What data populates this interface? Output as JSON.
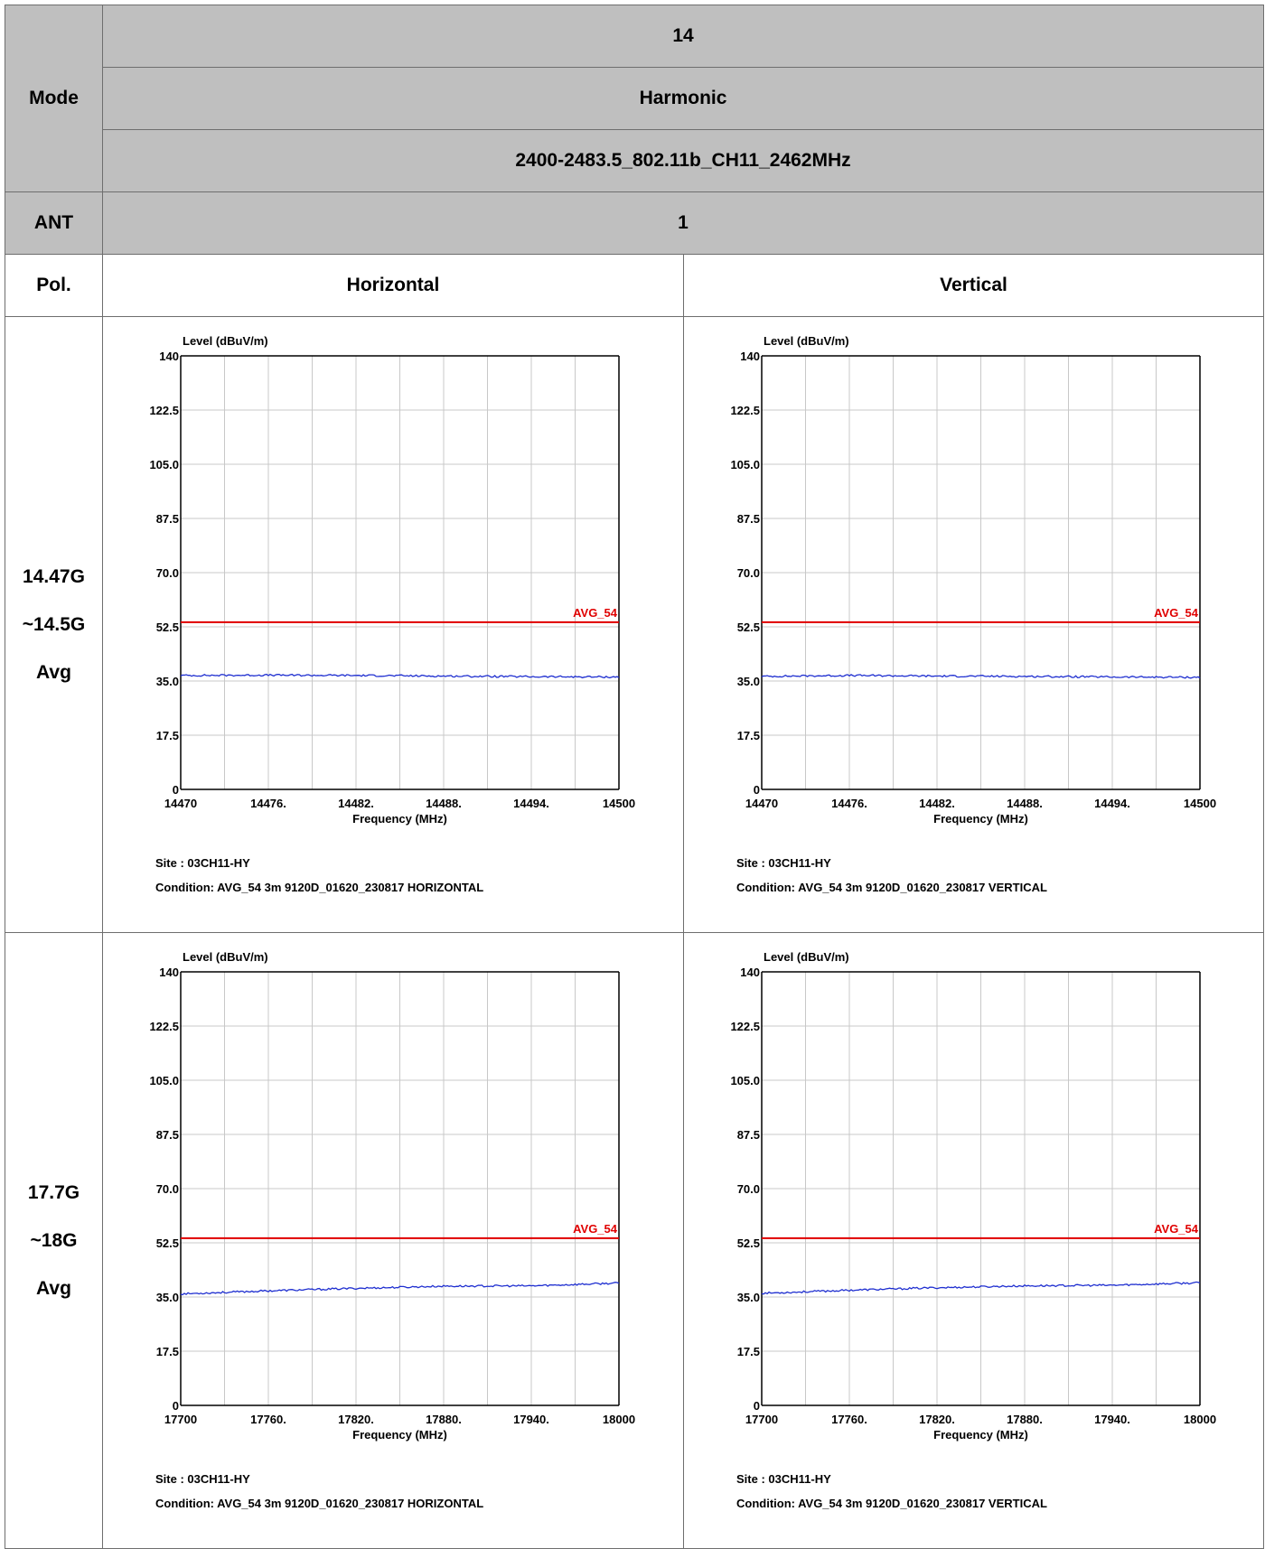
{
  "table": {
    "mode_header": "Mode",
    "mode_lines": [
      "14",
      "Harmonic",
      "2400-2483.5_802.11b_CH11_2462MHz"
    ],
    "ant_header": "ANT",
    "ant_value": "1",
    "pol_header": "Pol.",
    "pol_horizontal": "Horizontal",
    "pol_vertical": "Vertical",
    "rows": [
      {
        "label_lines": [
          "14.47G",
          "~14.5G",
          "Avg"
        ]
      },
      {
        "label_lines": [
          "17.7G",
          "~18G",
          "Avg"
        ]
      }
    ]
  },
  "colors": {
    "limit_line": "#e00000",
    "trace": "#1f2fd0",
    "grid": "#c8c8c8",
    "header_bg": "#bfbfbf"
  },
  "chart_data": [
    {
      "type": "line",
      "ylabel": "Level (dBuV/m)",
      "xlabel": "Frequency (MHz)",
      "ylim": [
        0,
        140
      ],
      "yticks": [
        "0",
        "17.5",
        "35.0",
        "52.5",
        "70.0",
        "87.5",
        "105.0",
        "122.5",
        "140"
      ],
      "xlim": [
        14470,
        14500
      ],
      "xticks": [
        "14470",
        "14476.",
        "14482.",
        "14488.",
        "14494.",
        "14500"
      ],
      "limit": {
        "name": "AVG_54",
        "value": 54
      },
      "series": [
        {
          "x": [
            14470,
            14476,
            14482,
            14488,
            14494,
            14500
          ],
          "values": [
            36.8,
            36.9,
            36.8,
            36.6,
            36.4,
            36.3
          ]
        }
      ],
      "site": "Site    : 03CH11-HY",
      "condition": "Condition: AVG_54 3m 9120D_01620_230817 HORIZONTAL"
    },
    {
      "type": "line",
      "ylabel": "Level (dBuV/m)",
      "xlabel": "Frequency (MHz)",
      "ylim": [
        0,
        140
      ],
      "yticks": [
        "0",
        "17.5",
        "35.0",
        "52.5",
        "70.0",
        "87.5",
        "105.0",
        "122.5",
        "140"
      ],
      "xlim": [
        14470,
        14500
      ],
      "xticks": [
        "14470",
        "14476.",
        "14482.",
        "14488.",
        "14494.",
        "14500"
      ],
      "limit": {
        "name": "AVG_54",
        "value": 54
      },
      "series": [
        {
          "x": [
            14470,
            14476,
            14482,
            14488,
            14494,
            14500
          ],
          "values": [
            36.5,
            36.8,
            36.6,
            36.5,
            36.3,
            36.2
          ]
        }
      ],
      "site": "Site    : 03CH11-HY",
      "condition": "Condition: AVG_54 3m 9120D_01620_230817 VERTICAL"
    },
    {
      "type": "line",
      "ylabel": "Level (dBuV/m)",
      "xlabel": "Frequency (MHz)",
      "ylim": [
        0,
        140
      ],
      "yticks": [
        "0",
        "17.5",
        "35.0",
        "52.5",
        "70.0",
        "87.5",
        "105.0",
        "122.5",
        "140"
      ],
      "xlim": [
        17700,
        18000
      ],
      "xticks": [
        "17700",
        "17760.",
        "17820.",
        "17880.",
        "17940.",
        "18000"
      ],
      "limit": {
        "name": "AVG_54",
        "value": 54
      },
      "series": [
        {
          "x": [
            17700,
            17760,
            17820,
            17880,
            17940,
            18000
          ],
          "values": [
            36.0,
            37.0,
            37.8,
            38.5,
            38.6,
            39.5
          ]
        }
      ],
      "site": "Site    : 03CH11-HY",
      "condition": "Condition: AVG_54 3m 9120D_01620_230817 HORIZONTAL"
    },
    {
      "type": "line",
      "ylabel": "Level (dBuV/m)",
      "xlabel": "Frequency (MHz)",
      "ylim": [
        0,
        140
      ],
      "yticks": [
        "0",
        "17.5",
        "35.0",
        "52.5",
        "70.0",
        "87.5",
        "105.0",
        "122.5",
        "140"
      ],
      "xlim": [
        17700,
        18000
      ],
      "xticks": [
        "17700",
        "17760.",
        "17820.",
        "17880.",
        "17940.",
        "18000"
      ],
      "limit": {
        "name": "AVG_54",
        "value": 54
      },
      "series": [
        {
          "x": [
            17700,
            17760,
            17820,
            17880,
            17940,
            18000
          ],
          "values": [
            36.2,
            37.2,
            38.0,
            38.6,
            38.8,
            39.6
          ]
        }
      ],
      "site": "Site    : 03CH11-HY",
      "condition": "Condition: AVG_54 3m 9120D_01620_230817 VERTICAL"
    }
  ]
}
